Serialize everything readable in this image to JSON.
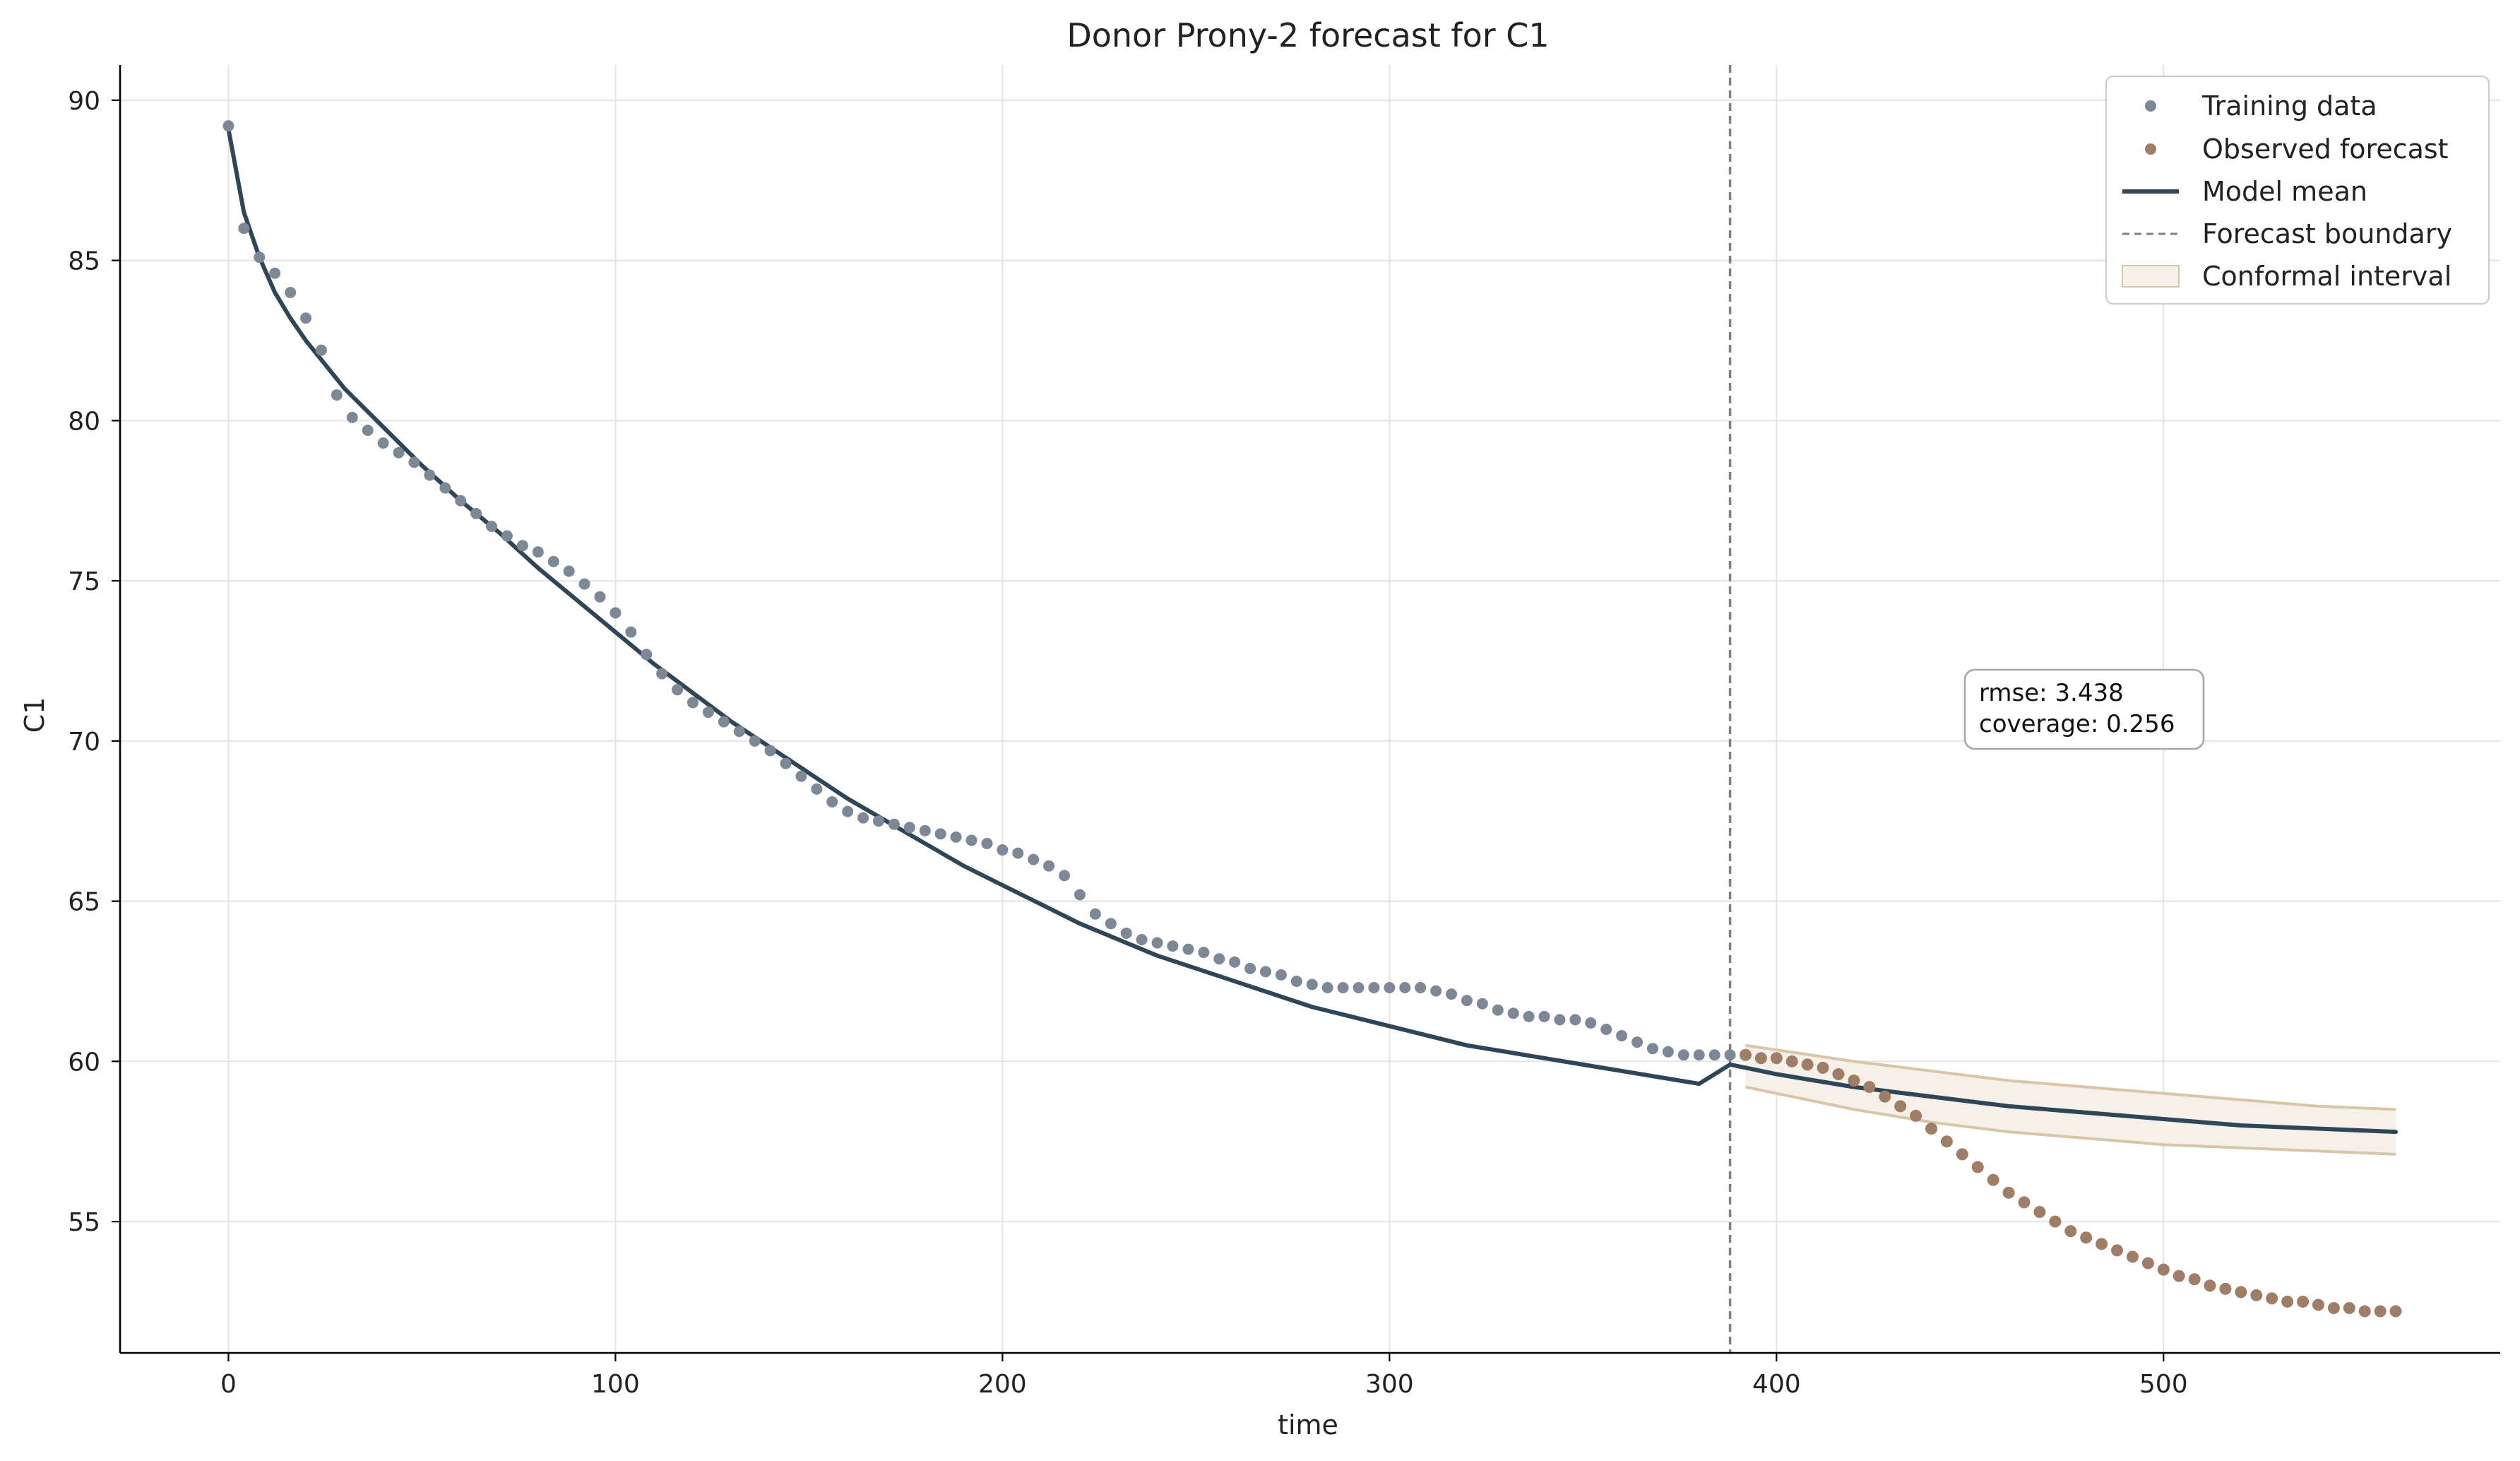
{
  "chart_data": {
    "type": "scatter",
    "title": "Donor Prony-2 forecast for C1",
    "xlabel": "time",
    "ylabel": "C1",
    "xlim": [
      -28,
      587
    ],
    "ylim": [
      50.9,
      91.1
    ],
    "xticks": [
      0,
      100,
      200,
      300,
      400,
      500
    ],
    "yticks": [
      55,
      60,
      65,
      70,
      75,
      80,
      85,
      90
    ],
    "grid": true,
    "legend_position": "top-right",
    "forecast_boundary": 388,
    "colors": {
      "training": "#7d8896",
      "observed": "#a07d67",
      "model": "#2e4657",
      "boundary": "#808080",
      "interval_fill": "#f6f1e8",
      "interval_edge": "#d9c5a8"
    },
    "legend": [
      {
        "label": "Training data",
        "kind": "training"
      },
      {
        "label": "Observed forecast",
        "kind": "observed"
      },
      {
        "label": "Model mean",
        "kind": "model"
      },
      {
        "label": "Forecast boundary",
        "kind": "boundary"
      },
      {
        "label": "Conformal interval",
        "kind": "interval"
      }
    ],
    "annotation": {
      "lines": [
        "rmse: 3.438",
        "coverage: 0.256"
      ]
    },
    "series": [
      {
        "name": "Training data",
        "x": [
          0,
          4,
          8,
          12,
          16,
          20,
          24,
          28,
          32,
          36,
          40,
          44,
          48,
          52,
          56,
          60,
          64,
          68,
          72,
          76,
          80,
          84,
          88,
          92,
          96,
          100,
          104,
          108,
          112,
          116,
          120,
          124,
          128,
          132,
          136,
          140,
          144,
          148,
          152,
          156,
          160,
          164,
          168,
          172,
          176,
          180,
          184,
          188,
          192,
          196,
          200,
          204,
          208,
          212,
          216,
          220,
          224,
          228,
          232,
          236,
          240,
          244,
          248,
          252,
          256,
          260,
          264,
          268,
          272,
          276,
          280,
          284,
          288,
          292,
          296,
          300,
          304,
          308,
          312,
          316,
          320,
          324,
          328,
          332,
          336,
          340,
          344,
          348,
          352,
          356,
          360,
          364,
          368,
          372,
          376,
          380,
          384,
          388
        ],
        "y": [
          89.2,
          86.0,
          85.1,
          84.6,
          84.0,
          83.2,
          82.2,
          80.8,
          80.1,
          79.7,
          79.3,
          79.0,
          78.7,
          78.3,
          77.9,
          77.5,
          77.1,
          76.7,
          76.4,
          76.1,
          75.9,
          75.6,
          75.3,
          74.9,
          74.5,
          74.0,
          73.4,
          72.7,
          72.1,
          71.6,
          71.2,
          70.9,
          70.6,
          70.3,
          70.0,
          69.7,
          69.3,
          68.9,
          68.5,
          68.1,
          67.8,
          67.6,
          67.5,
          67.4,
          67.3,
          67.2,
          67.1,
          67.0,
          66.9,
          66.8,
          66.6,
          66.5,
          66.3,
          66.1,
          65.8,
          65.2,
          64.6,
          64.3,
          64.0,
          63.8,
          63.7,
          63.6,
          63.5,
          63.4,
          63.2,
          63.1,
          62.9,
          62.8,
          62.7,
          62.5,
          62.4,
          62.3,
          62.3,
          62.3,
          62.3,
          62.3,
          62.3,
          62.3,
          62.2,
          62.1,
          61.9,
          61.8,
          61.6,
          61.5,
          61.4,
          61.4,
          61.3,
          61.3,
          61.2,
          61.0,
          60.8,
          60.6,
          60.4,
          60.3,
          60.2,
          60.2,
          60.2,
          60.2
        ]
      },
      {
        "name": "Observed forecast",
        "x": [
          392,
          396,
          400,
          404,
          408,
          412,
          416,
          420,
          424,
          428,
          432,
          436,
          440,
          444,
          448,
          452,
          456,
          460,
          464,
          468,
          472,
          476,
          480,
          484,
          488,
          492,
          496,
          500,
          504,
          508,
          512,
          516,
          520,
          524,
          528,
          532,
          536,
          540,
          544,
          548,
          552,
          556,
          560
        ],
        "y": [
          60.2,
          60.1,
          60.1,
          60.0,
          59.9,
          59.8,
          59.6,
          59.4,
          59.2,
          58.9,
          58.6,
          58.3,
          57.9,
          57.5,
          57.1,
          56.7,
          56.3,
          55.9,
          55.6,
          55.3,
          55.0,
          54.7,
          54.5,
          54.3,
          54.1,
          53.9,
          53.7,
          53.5,
          53.3,
          53.2,
          53.0,
          52.9,
          52.8,
          52.7,
          52.6,
          52.5,
          52.5,
          52.4,
          52.3,
          52.3,
          52.2,
          52.2,
          52.2
        ]
      },
      {
        "name": "Model mean",
        "x": [
          0,
          4,
          8,
          12,
          16,
          20,
          30,
          40,
          50,
          60,
          70,
          80,
          90,
          100,
          110,
          120,
          130,
          140,
          150,
          160,
          170,
          180,
          190,
          200,
          210,
          220,
          230,
          240,
          250,
          260,
          270,
          280,
          290,
          300,
          310,
          320,
          330,
          340,
          350,
          360,
          370,
          380,
          388,
          400,
          420,
          440,
          460,
          480,
          500,
          520,
          540,
          560
        ],
        "y": [
          89.1,
          86.5,
          85.1,
          84.0,
          83.2,
          82.5,
          81.0,
          79.8,
          78.6,
          77.5,
          76.5,
          75.4,
          74.4,
          73.4,
          72.4,
          71.5,
          70.6,
          69.8,
          69.0,
          68.2,
          67.5,
          66.8,
          66.1,
          65.5,
          64.9,
          64.3,
          63.8,
          63.3,
          62.9,
          62.5,
          62.1,
          61.7,
          61.4,
          61.1,
          60.8,
          60.5,
          60.3,
          60.1,
          59.9,
          59.7,
          59.5,
          59.3,
          59.9,
          59.6,
          59.2,
          58.9,
          58.6,
          58.4,
          58.2,
          58.0,
          57.9,
          57.8
        ]
      },
      {
        "name": "Conformal interval",
        "x": [
          392,
          420,
          440,
          460,
          480,
          500,
          520,
          540,
          560
        ],
        "upper": [
          60.5,
          60.0,
          59.7,
          59.4,
          59.2,
          59.0,
          58.8,
          58.6,
          58.5
        ],
        "lower": [
          59.2,
          58.5,
          58.1,
          57.8,
          57.6,
          57.4,
          57.3,
          57.2,
          57.1
        ]
      }
    ]
  }
}
